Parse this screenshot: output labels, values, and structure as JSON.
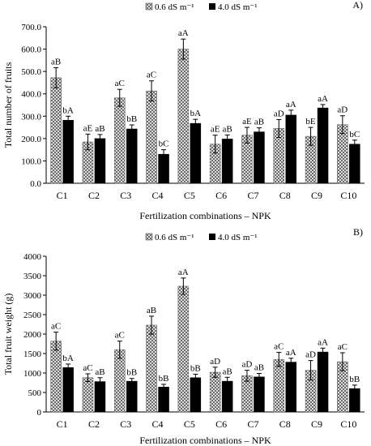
{
  "colors": {
    "series_a_fill": "hatched-grey",
    "series_b_fill": "#000000",
    "axis": "#000000"
  },
  "chart_data": [
    {
      "type": "bar",
      "panel_label": "A)",
      "categories": [
        "C1",
        "C2",
        "C3",
        "C4",
        "C5",
        "C6",
        "C7",
        "C8",
        "C9",
        "C10"
      ],
      "xlabel": "Fertilization combinations – NPK",
      "ylabel": "Total number of fruits",
      "ylim": [
        0,
        700
      ],
      "yticks": [
        0,
        100,
        200,
        300,
        400,
        500,
        600,
        700
      ],
      "ytick_labels": [
        "0.0",
        "100.0",
        "200.0",
        "300.0",
        "400.0",
        "500.0",
        "600.0",
        "700.0"
      ],
      "legend": {
        "placement": "top-center",
        "entries": [
          "0.6 dS m⁻¹",
          "4.0 dS m⁻¹"
        ]
      },
      "series": [
        {
          "name": "0.6 dS m⁻¹",
          "values": [
            472,
            185,
            382,
            413,
            600,
            175,
            215,
            245,
            210,
            262
          ],
          "errors": [
            45,
            35,
            38,
            45,
            45,
            40,
            35,
            40,
            40,
            40
          ],
          "labels": [
            "aB",
            "aE",
            "aC",
            "aC",
            "aA",
            "aE",
            "aE",
            "aD",
            "bE",
            "aD"
          ]
        },
        {
          "name": "4.0 dS m⁻¹",
          "values": [
            282,
            200,
            243,
            130,
            268,
            198,
            230,
            305,
            337,
            175
          ],
          "errors": [
            18,
            18,
            18,
            20,
            18,
            18,
            18,
            22,
            15,
            18
          ],
          "labels": [
            "bA",
            "aB",
            "bB",
            "bC",
            "bA",
            "aB",
            "aB",
            "aA",
            "aA",
            "bC"
          ]
        }
      ]
    },
    {
      "type": "bar",
      "panel_label": "B)",
      "categories": [
        "C1",
        "C2",
        "C3",
        "C4",
        "C5",
        "C6",
        "C7",
        "C8",
        "C9",
        "C10"
      ],
      "xlabel": "Fertilization combinations – NPK",
      "ylabel": "Total fruit weight  (g)",
      "ylim": [
        0,
        4000
      ],
      "yticks": [
        0,
        500,
        1000,
        1500,
        2000,
        2500,
        3000,
        3500,
        4000
      ],
      "ytick_labels": [
        "0",
        "500",
        "1000",
        "1500",
        "2000",
        "2500",
        "3000",
        "3500",
        "4000"
      ],
      "legend": {
        "placement": "top-center",
        "entries": [
          "0.6 dS m⁻¹",
          "4.0 dS m⁻¹"
        ]
      },
      "series": [
        {
          "name": "0.6 dS m⁻¹",
          "values": [
            1820,
            880,
            1600,
            2230,
            3230,
            1020,
            930,
            1350,
            1070,
            1290
          ],
          "errors": [
            230,
            100,
            220,
            230,
            210,
            130,
            140,
            180,
            250,
            230
          ],
          "labels": [
            "aC",
            "aC",
            "aC",
            "aB",
            "aA",
            "aD",
            "aD",
            "aC",
            "aD",
            "aC"
          ]
        },
        {
          "name": "4.0 dS m⁻¹",
          "values": [
            1140,
            780,
            790,
            640,
            880,
            790,
            900,
            1280,
            1540,
            600
          ],
          "errors": [
            90,
            100,
            70,
            70,
            90,
            100,
            90,
            100,
            100,
            90
          ],
          "labels": [
            "bA",
            "aB",
            "bB",
            "bB",
            "bB",
            "aB",
            "aB",
            "aA",
            "aA",
            "bB"
          ]
        }
      ]
    }
  ]
}
